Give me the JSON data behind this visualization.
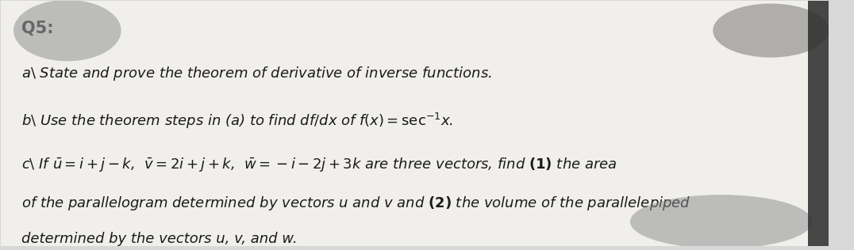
{
  "background_color": "#d8d8d8",
  "paper_color": "#f0efeb",
  "title": "Q5:",
  "font_size_title": 15,
  "font_size_body": 13,
  "text_color": "#1a1a1a"
}
